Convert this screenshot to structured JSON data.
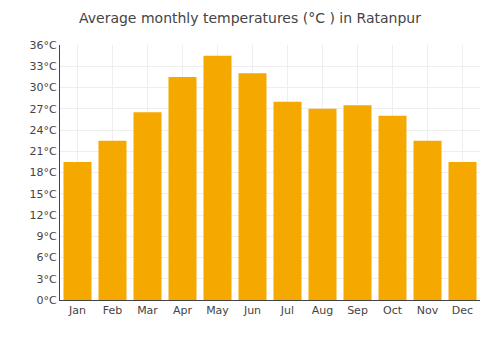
{
  "chart_data": {
    "type": "bar",
    "title": "Average monthly temperatures (°C ) in Ratanpur",
    "categories": [
      "Jan",
      "Feb",
      "Mar",
      "Apr",
      "May",
      "Jun",
      "Jul",
      "Aug",
      "Sep",
      "Oct",
      "Nov",
      "Dec"
    ],
    "values": [
      19.5,
      22.5,
      26.5,
      31.5,
      34.5,
      32.0,
      28.0,
      27.0,
      27.5,
      26.0,
      22.5,
      19.5
    ],
    "color": "#F5A800",
    "ylim": [
      0,
      36
    ],
    "yticks": [
      {
        "value": 0,
        "label": "0°C"
      },
      {
        "value": 3,
        "label": "3°C"
      },
      {
        "value": 6,
        "label": "6°C"
      },
      {
        "value": 9,
        "label": "9°C"
      },
      {
        "value": 12,
        "label": "12°C"
      },
      {
        "value": 15,
        "label": "15°C"
      },
      {
        "value": 18,
        "label": "18°C"
      },
      {
        "value": 21,
        "label": "21°C"
      },
      {
        "value": 24,
        "label": "24°C"
      },
      {
        "value": 27,
        "label": "27°C"
      },
      {
        "value": 30,
        "label": "30°C"
      },
      {
        "value": 33,
        "label": "33°C"
      },
      {
        "value": 36,
        "label": "36°C"
      }
    ],
    "grid": true
  }
}
